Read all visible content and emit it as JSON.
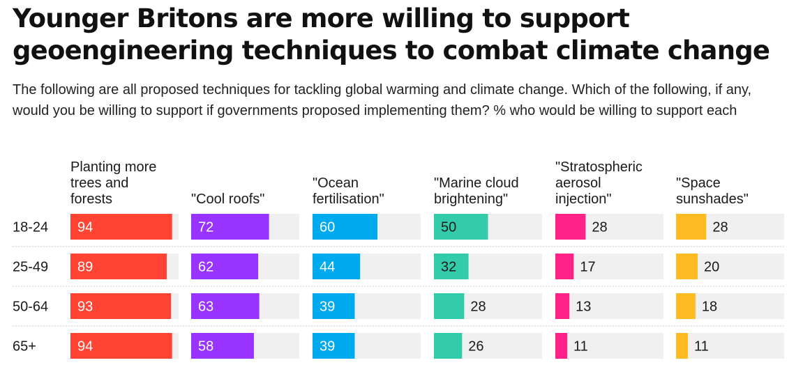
{
  "title": "Younger Britons are more willing to support geoengineering techniques to combat climate change",
  "subtitle": "The following are all proposed techniques for tackling global warming and climate change. Which of the following, if any, would you be willing to support if governments proposed implementing them? % who would be willing to support each",
  "chart_data": {
    "type": "bar",
    "title": "Younger Britons are more willing to support geoengineering techniques to combat climate change",
    "subtitle": "The following are all proposed techniques for tackling global warming and climate change. Which of the following, if any, would you be willing to support if governments proposed implementing them? % who would be willing to support each",
    "categories": [
      "18-24",
      "25-49",
      "50-64",
      "65+"
    ],
    "ylim": [
      0,
      100
    ],
    "grid": false,
    "series": [
      {
        "name": "Planting more trees and forests",
        "header_lines": [
          "Planting more",
          "trees and",
          "forests"
        ],
        "color": "#ff4433",
        "values": [
          94,
          89,
          93,
          94
        ]
      },
      {
        "name": "\"Cool roofs\"",
        "header_lines": [
          "\"Cool roofs\""
        ],
        "color": "#9933ff",
        "values": [
          72,
          62,
          63,
          58
        ]
      },
      {
        "name": "\"Ocean fertilisation\"",
        "header_lines": [
          "\"Ocean",
          "fertilisation\""
        ],
        "color": "#00aaee",
        "values": [
          60,
          44,
          39,
          39
        ]
      },
      {
        "name": "\"Marine cloud brightening\"",
        "header_lines": [
          "\"Marine cloud",
          "brightening\""
        ],
        "color": "#33ccaa",
        "values": [
          50,
          32,
          28,
          26
        ]
      },
      {
        "name": "\"Stratospheric aerosol injection\"",
        "header_lines": [
          "\"Stratospheric",
          "aerosol",
          "injection\""
        ],
        "color": "#ff2288",
        "values": [
          28,
          17,
          13,
          11
        ]
      },
      {
        "name": "\"Space sunshades\"",
        "header_lines": [
          "\"Space",
          "sunshades\""
        ],
        "color": "#ffbb22",
        "values": [
          28,
          20,
          18,
          11
        ]
      }
    ]
  }
}
